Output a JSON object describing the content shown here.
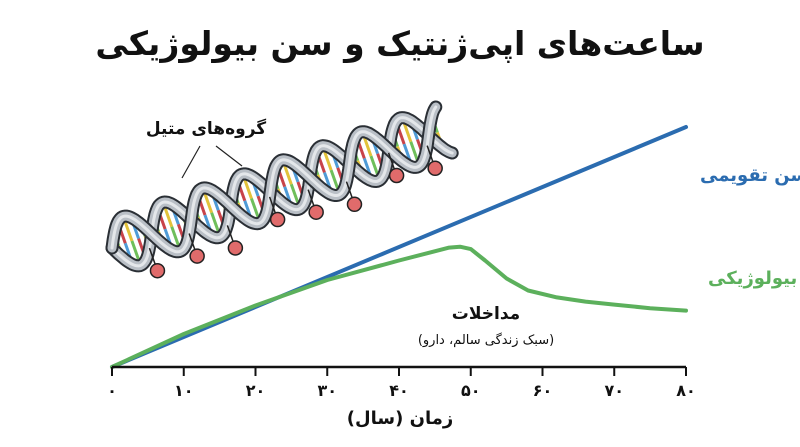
{
  "chart_data": {
    "type": "line",
    "title": "ساعت‌های اپی‌ژنتیک و سن بیولوژیکی",
    "xlabel": "زمان (سال)",
    "ylabel": "",
    "xlim": [
      0,
      80
    ],
    "x_ticks": [
      0,
      10,
      20,
      30,
      40,
      50,
      60,
      70,
      80
    ],
    "x_tick_labels": [
      "۰",
      "۱۰",
      "۲۰",
      "۳۰",
      "۴۰",
      "۵۰",
      "۶۰",
      "۷۰",
      "۸۰"
    ],
    "ylim": [
      0,
      80
    ],
    "grid": false,
    "series": [
      {
        "name": "سن تقویمی",
        "color": "#2b6cb0",
        "x": [
          0,
          80
        ],
        "y": [
          0,
          80
        ]
      },
      {
        "name": "سن بیولوژیکی",
        "color": "#5cb05c",
        "x": [
          0,
          10,
          20,
          30,
          40,
          47,
          48.5,
          50,
          52,
          55,
          58,
          62,
          66,
          70,
          75,
          80
        ],
        "y": [
          0,
          11,
          20.5,
          29,
          35.5,
          39.8,
          40.1,
          39.3,
          35.5,
          29.5,
          25.5,
          23.2,
          21.8,
          20.8,
          19.6,
          18.8
        ]
      }
    ],
    "annotations": {
      "methyl_label": "گروه‌های متیل",
      "intervention_label": "مداخلات",
      "intervention_sub": "(سبک زندگی سالم، دارو)"
    }
  }
}
